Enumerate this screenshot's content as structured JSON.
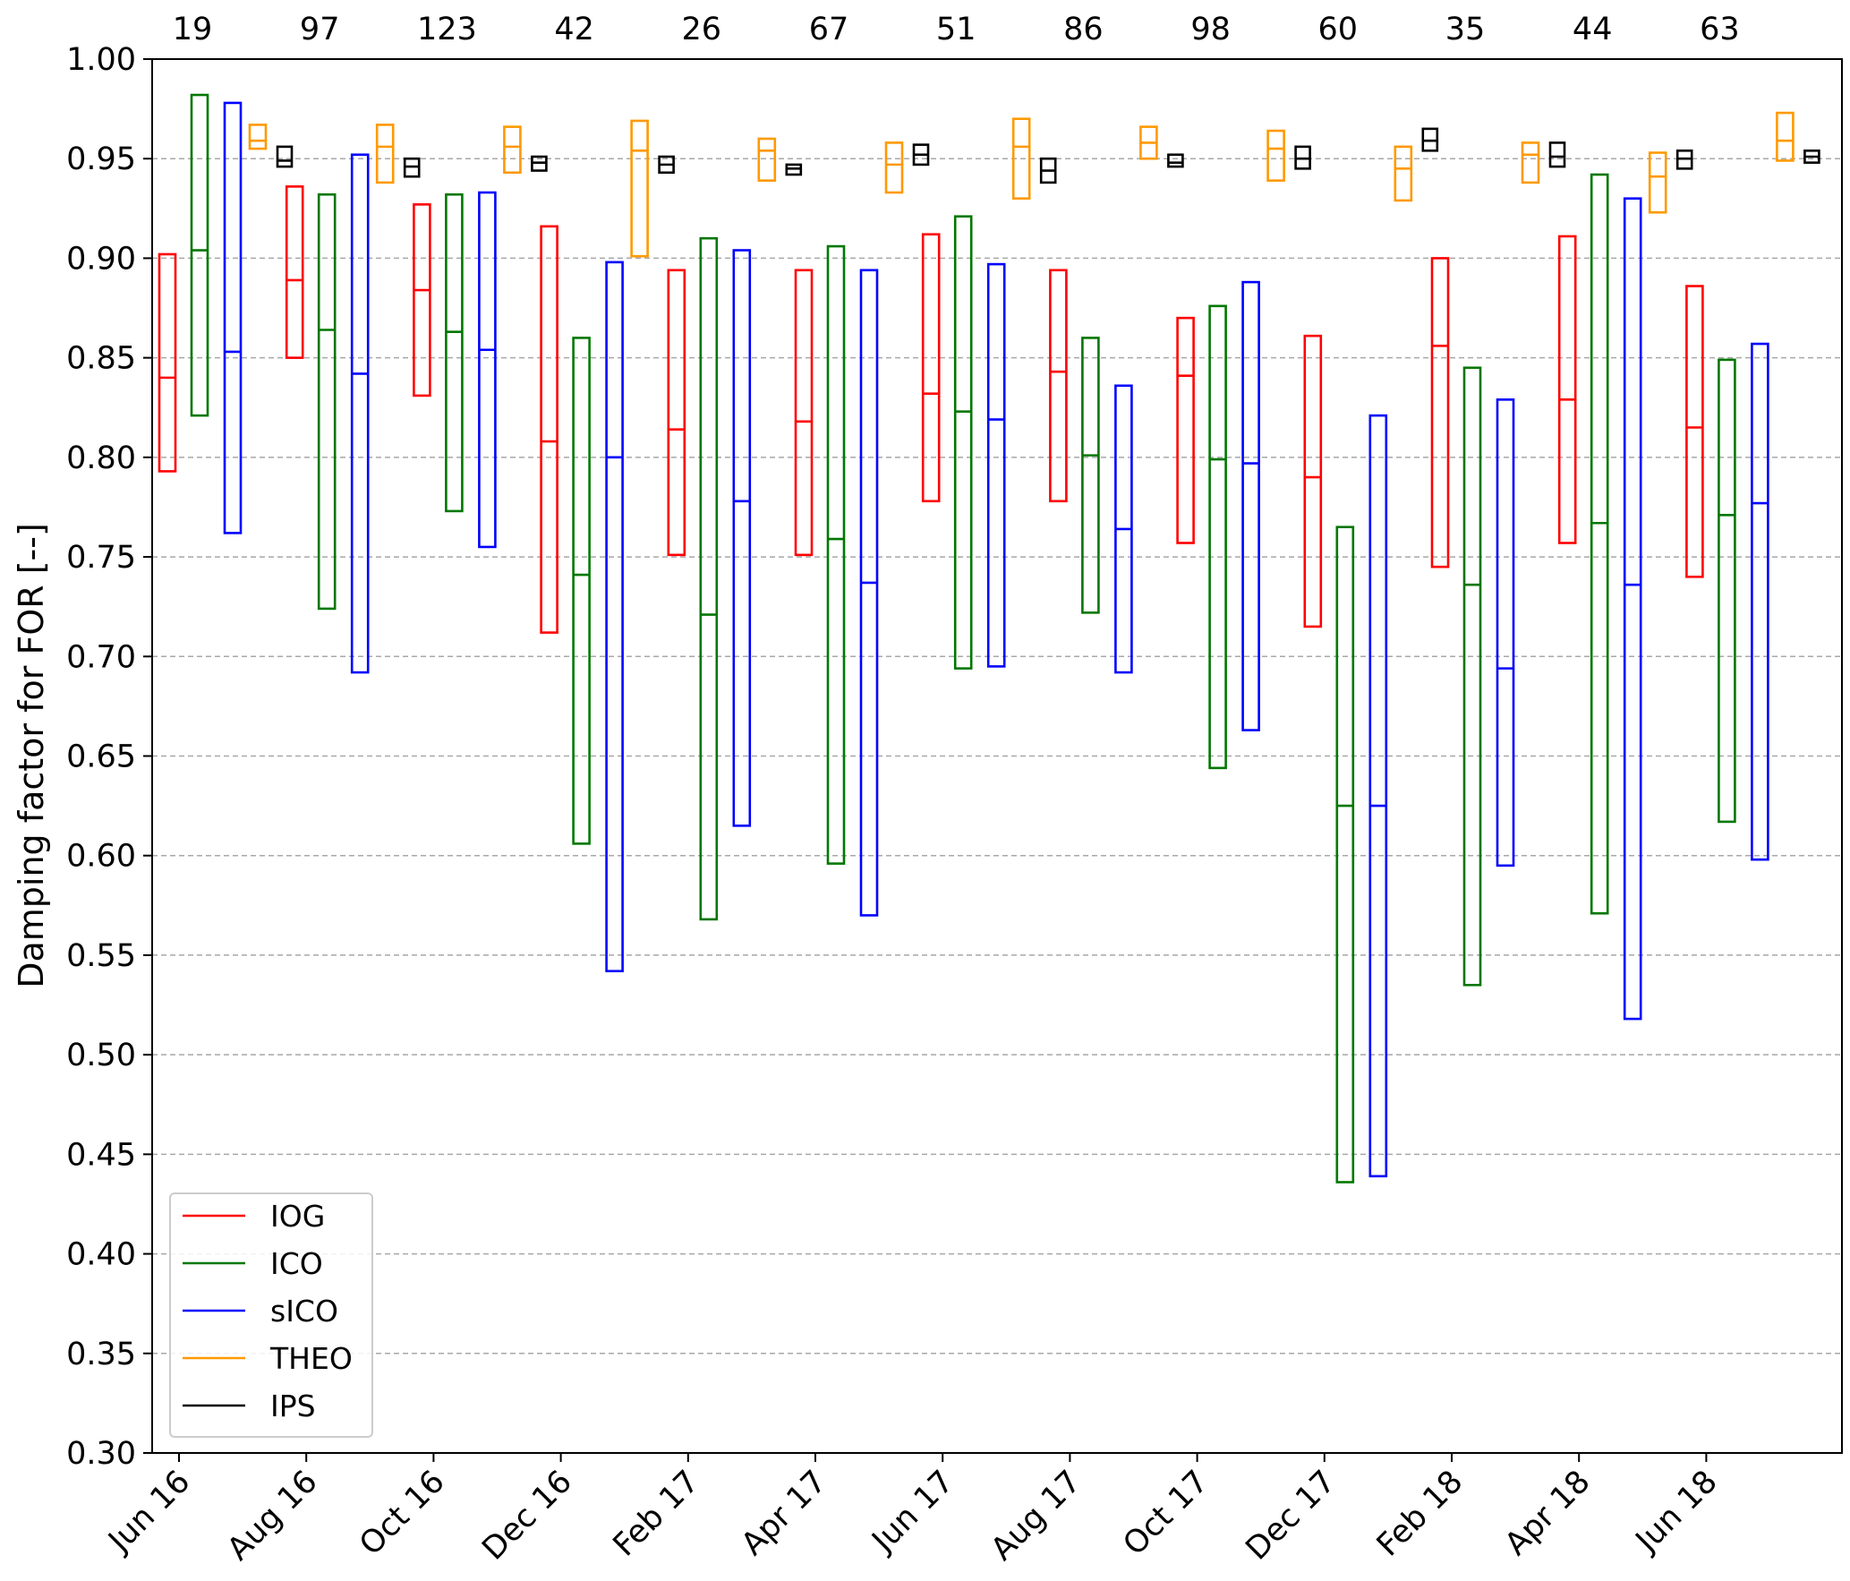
{
  "chart_data": {
    "type": "box",
    "ylabel": "Damping factor for FOR [--]",
    "xlabel": "",
    "ylim": [
      0.3,
      1.0
    ],
    "yticks": [
      "0.30",
      "0.35",
      "0.40",
      "0.45",
      "0.50",
      "0.55",
      "0.60",
      "0.65",
      "0.70",
      "0.75",
      "0.80",
      "0.85",
      "0.90",
      "0.95",
      "1.00"
    ],
    "grid": "horizontal dashed",
    "legend_position": "bottom-left",
    "xtick_labels": [
      "Jun 16",
      "Aug 16",
      "Oct 16",
      "Dec 16",
      "Feb 17",
      "Apr 17",
      "Jun 17",
      "Aug 17",
      "Oct 17",
      "Dec 17",
      "Feb 18",
      "Apr 18",
      "Jun 18"
    ],
    "period_counts": [
      "19",
      "97",
      "123",
      "42",
      "26",
      "67",
      "51",
      "86",
      "98",
      "60",
      "35",
      "44",
      "63"
    ],
    "series": [
      {
        "name": "IOG",
        "color": "#ff0000",
        "boxes": [
          {
            "low": 0.793,
            "median": 0.84,
            "high": 0.902
          },
          {
            "low": 0.85,
            "median": 0.889,
            "high": 0.936
          },
          {
            "low": 0.831,
            "median": 0.884,
            "high": 0.927
          },
          {
            "low": 0.712,
            "median": 0.808,
            "high": 0.916
          },
          {
            "low": 0.751,
            "median": 0.814,
            "high": 0.894
          },
          {
            "low": 0.751,
            "median": 0.818,
            "high": 0.894
          },
          {
            "low": 0.778,
            "median": 0.832,
            "high": 0.912
          },
          {
            "low": 0.778,
            "median": 0.843,
            "high": 0.894
          },
          {
            "low": 0.757,
            "median": 0.841,
            "high": 0.87
          },
          {
            "low": 0.715,
            "median": 0.79,
            "high": 0.861
          },
          {
            "low": 0.745,
            "median": 0.856,
            "high": 0.9
          },
          {
            "low": 0.757,
            "median": 0.829,
            "high": 0.911
          },
          {
            "low": 0.74,
            "median": 0.815,
            "high": 0.886
          }
        ]
      },
      {
        "name": "ICO",
        "color": "#007700",
        "boxes": [
          {
            "low": 0.821,
            "median": 0.904,
            "high": 0.982
          },
          {
            "low": 0.724,
            "median": 0.864,
            "high": 0.932
          },
          {
            "low": 0.773,
            "median": 0.863,
            "high": 0.932
          },
          {
            "low": 0.606,
            "median": 0.741,
            "high": 0.86
          },
          {
            "low": 0.568,
            "median": 0.721,
            "high": 0.91
          },
          {
            "low": 0.596,
            "median": 0.759,
            "high": 0.906
          },
          {
            "low": 0.694,
            "median": 0.823,
            "high": 0.921
          },
          {
            "low": 0.722,
            "median": 0.801,
            "high": 0.86
          },
          {
            "low": 0.644,
            "median": 0.799,
            "high": 0.876
          },
          {
            "low": 0.436,
            "median": 0.625,
            "high": 0.765
          },
          {
            "low": 0.535,
            "median": 0.736,
            "high": 0.845
          },
          {
            "low": 0.571,
            "median": 0.767,
            "high": 0.942
          },
          {
            "low": 0.617,
            "median": 0.771,
            "high": 0.849
          }
        ]
      },
      {
        "name": "sICO",
        "color": "#0000ff",
        "boxes": [
          {
            "low": 0.762,
            "median": 0.853,
            "high": 0.978
          },
          {
            "low": 0.692,
            "median": 0.842,
            "high": 0.952
          },
          {
            "low": 0.755,
            "median": 0.854,
            "high": 0.933
          },
          {
            "low": 0.542,
            "median": 0.8,
            "high": 0.898
          },
          {
            "low": 0.615,
            "median": 0.778,
            "high": 0.904
          },
          {
            "low": 0.57,
            "median": 0.737,
            "high": 0.894
          },
          {
            "low": 0.695,
            "median": 0.819,
            "high": 0.897
          },
          {
            "low": 0.692,
            "median": 0.764,
            "high": 0.836
          },
          {
            "low": 0.663,
            "median": 0.797,
            "high": 0.888
          },
          {
            "low": 0.439,
            "median": 0.625,
            "high": 0.821
          },
          {
            "low": 0.595,
            "median": 0.694,
            "high": 0.829
          },
          {
            "low": 0.518,
            "median": 0.736,
            "high": 0.93
          },
          {
            "low": 0.598,
            "median": 0.777,
            "high": 0.857
          }
        ]
      },
      {
        "name": "THEO",
        "color": "#ff9900",
        "boxes": [
          {
            "low": 0.955,
            "median": 0.959,
            "high": 0.967
          },
          {
            "low": 0.938,
            "median": 0.956,
            "high": 0.967
          },
          {
            "low": 0.943,
            "median": 0.956,
            "high": 0.966
          },
          {
            "low": 0.901,
            "median": 0.954,
            "high": 0.969
          },
          {
            "low": 0.939,
            "median": 0.954,
            "high": 0.96
          },
          {
            "low": 0.933,
            "median": 0.947,
            "high": 0.958
          },
          {
            "low": 0.93,
            "median": 0.956,
            "high": 0.97
          },
          {
            "low": 0.95,
            "median": 0.958,
            "high": 0.966
          },
          {
            "low": 0.939,
            "median": 0.955,
            "high": 0.964
          },
          {
            "low": 0.929,
            "median": 0.945,
            "high": 0.956
          },
          {
            "low": 0.938,
            "median": 0.952,
            "high": 0.958
          },
          {
            "low": 0.923,
            "median": 0.941,
            "high": 0.953
          },
          {
            "low": 0.949,
            "median": 0.959,
            "high": 0.973
          }
        ]
      },
      {
        "name": "IPS",
        "color": "#000000",
        "boxes": [
          {
            "low": 0.946,
            "median": 0.949,
            "high": 0.956
          },
          {
            "low": 0.941,
            "median": 0.946,
            "high": 0.95
          },
          {
            "low": 0.944,
            "median": 0.948,
            "high": 0.951
          },
          {
            "low": 0.943,
            "median": 0.947,
            "high": 0.951
          },
          {
            "low": 0.942,
            "median": 0.945,
            "high": 0.947
          },
          {
            "low": 0.947,
            "median": 0.952,
            "high": 0.957
          },
          {
            "low": 0.938,
            "median": 0.944,
            "high": 0.95
          },
          {
            "low": 0.946,
            "median": 0.948,
            "high": 0.952
          },
          {
            "low": 0.945,
            "median": 0.95,
            "high": 0.956
          },
          {
            "low": 0.954,
            "median": 0.959,
            "high": 0.965
          },
          {
            "low": 0.946,
            "median": 0.951,
            "high": 0.958
          },
          {
            "low": 0.945,
            "median": 0.95,
            "high": 0.954
          },
          {
            "low": 0.948,
            "median": 0.951,
            "high": 0.954
          }
        ]
      }
    ]
  }
}
